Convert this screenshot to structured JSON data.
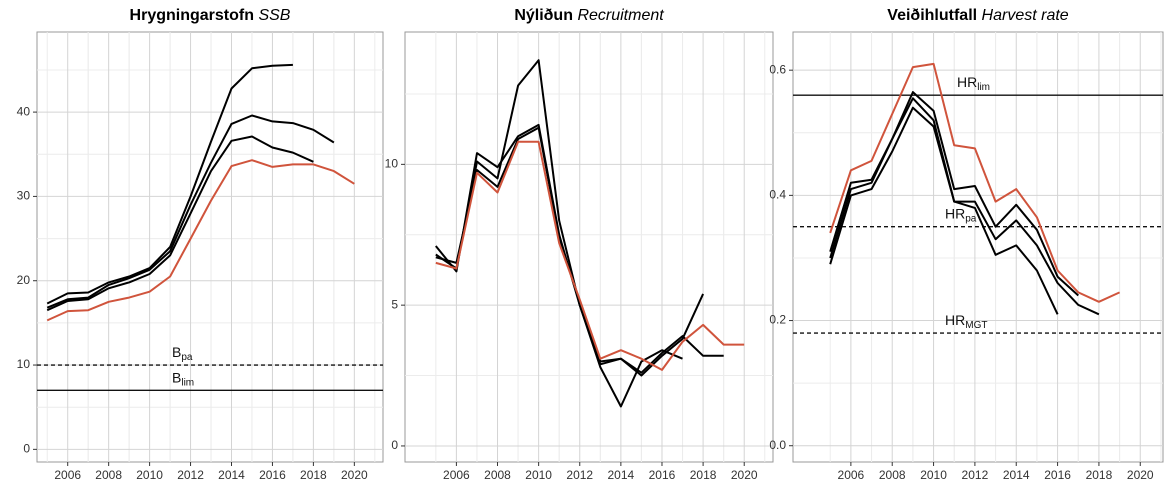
{
  "chart_data": [
    {
      "type": "line",
      "title": "Hrygningarstofn",
      "title_en": "SSB",
      "x": [
        2005,
        2006,
        2007,
        2008,
        2009,
        2010,
        2011,
        2012,
        2013,
        2014,
        2015,
        2016,
        2017,
        2018,
        2019,
        2020
      ],
      "xlim": [
        2004.5,
        2021.4
      ],
      "xticks": [
        2006,
        2008,
        2010,
        2012,
        2014,
        2016,
        2018,
        2020
      ],
      "ylim": [
        -1.5,
        49.5
      ],
      "yticks": [
        0,
        10,
        20,
        30,
        40
      ],
      "grid": true,
      "series": [
        {
          "color": "#000000",
          "values": [
            17.3,
            18.5,
            18.6,
            19.8,
            20.5,
            21.5,
            24,
            30,
            36.5,
            42.8,
            45.2,
            45.5,
            45.6,
            null,
            null,
            null
          ]
        },
        {
          "color": "#000000",
          "values": [
            16.8,
            17.8,
            18.0,
            19.5,
            20.3,
            21.3,
            23.5,
            29,
            34,
            38.6,
            39.6,
            38.9,
            38.7,
            37.9,
            36.4,
            null
          ]
        },
        {
          "color": "#000000",
          "values": [
            16.5,
            17.6,
            17.8,
            19.1,
            19.8,
            20.8,
            23,
            28,
            33,
            36.6,
            37.1,
            35.8,
            35.2,
            34.1,
            null,
            null
          ]
        },
        {
          "color": "#d0543c",
          "values": [
            15.3,
            16.4,
            16.5,
            17.5,
            18.0,
            18.7,
            20.5,
            25,
            29.5,
            33.6,
            34.3,
            33.5,
            33.8,
            33.8,
            33.0,
            31.5
          ]
        }
      ],
      "hlines": [
        {
          "value": 10,
          "label": "B",
          "sub": "pa",
          "style": "dashed"
        },
        {
          "value": 7,
          "label": "B",
          "sub": "lim",
          "style": "solid"
        }
      ]
    },
    {
      "type": "line",
      "title": "Nýliðun",
      "title_en": "Recruitment",
      "x": [
        2005,
        2006,
        2007,
        2008,
        2009,
        2010,
        2011,
        2012,
        2013,
        2014,
        2015,
        2016,
        2017,
        2018,
        2019,
        2020
      ],
      "xlim": [
        2003.5,
        2021.4
      ],
      "xticks": [
        2006,
        2008,
        2010,
        2012,
        2014,
        2016,
        2018,
        2020
      ],
      "ylim": [
        -0.57,
        14.7
      ],
      "yticks": [
        0,
        5,
        10
      ],
      "grid": true,
      "series": [
        {
          "color": "#000000",
          "values": [
            6.8,
            6.3,
            10.1,
            9.5,
            12.8,
            13.7,
            8.0,
            5.0,
            2.9,
            3.1,
            2.5,
            3.2,
            3.8,
            5.4,
            null,
            null
          ]
        },
        {
          "color": "#000000",
          "values": [
            7.1,
            6.2,
            10.4,
            9.9,
            11.0,
            11.4,
            7.5,
            5.0,
            2.8,
            1.4,
            3.0,
            3.4,
            3.1,
            null,
            null,
            null
          ]
        },
        {
          "color": "#000000",
          "values": [
            6.7,
            6.5,
            9.8,
            9.2,
            10.9,
            11.3,
            7.4,
            5.1,
            3.0,
            3.1,
            2.6,
            3.3,
            3.9,
            3.2,
            3.2,
            null
          ]
        },
        {
          "color": "#d0543c",
          "values": [
            6.5,
            6.3,
            9.7,
            9.0,
            10.8,
            10.8,
            7.2,
            5.2,
            3.1,
            3.4,
            3.1,
            2.7,
            3.7,
            4.3,
            3.6,
            3.6
          ]
        }
      ],
      "hlines": []
    },
    {
      "type": "line",
      "title": "Veiðihlutfall",
      "title_en": "Harvest rate",
      "x": [
        2005,
        2006,
        2007,
        2008,
        2009,
        2010,
        2011,
        2012,
        2013,
        2014,
        2015,
        2016,
        2017,
        2018,
        2019,
        2020
      ],
      "xlim": [
        2003.2,
        2021.1
      ],
      "xticks": [
        2006,
        2008,
        2010,
        2012,
        2014,
        2016,
        2018,
        2020
      ],
      "ylim": [
        -0.026,
        0.661
      ],
      "yticks": [
        {
          "value": 0,
          "label": "0.0"
        },
        0.2,
        0.4,
        0.6
      ],
      "grid": true,
      "series": [
        {
          "color": "#000000",
          "values": [
            0.31,
            0.42,
            0.425,
            0.49,
            0.565,
            0.535,
            0.41,
            0.415,
            0.35,
            0.385,
            0.345,
            0.27,
            0.24,
            null,
            null,
            null
          ]
        },
        {
          "color": "#000000",
          "values": [
            0.3,
            0.41,
            0.42,
            0.49,
            0.555,
            0.52,
            0.39,
            0.39,
            0.33,
            0.36,
            0.32,
            0.26,
            0.225,
            0.21,
            null,
            null
          ]
        },
        {
          "color": "#000000",
          "values": [
            0.29,
            0.4,
            0.41,
            0.47,
            0.54,
            0.51,
            0.39,
            0.38,
            0.305,
            0.32,
            0.28,
            0.21,
            null,
            null,
            null,
            null
          ]
        },
        {
          "color": "#d0543c",
          "values": [
            0.34,
            0.44,
            0.455,
            0.53,
            0.605,
            0.61,
            0.48,
            0.475,
            0.39,
            0.41,
            0.365,
            0.28,
            0.245,
            0.23,
            0.245,
            null
          ]
        }
      ],
      "hlines": [
        {
          "value": 0.56,
          "label": "HR",
          "sub": "lim",
          "style": "solid"
        },
        {
          "value": 0.35,
          "label": "HR",
          "sub": "pa",
          "style": "dashed"
        },
        {
          "value": 0.18,
          "label": "HR",
          "sub": "MGT",
          "style": "dashed"
        }
      ]
    }
  ]
}
